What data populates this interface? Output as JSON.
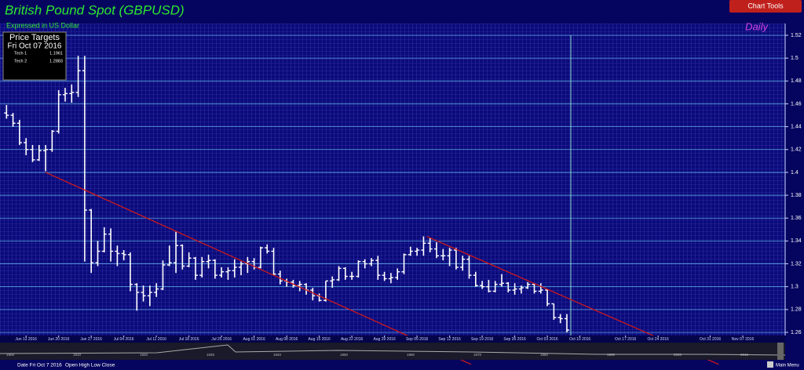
{
  "chart_data": {
    "type": "ohlc",
    "title": "British Pound Spot (GBPUSD)",
    "subtitle": "Expressed in US Dollar",
    "period": "Daily",
    "color": "#ffffff",
    "grid": true,
    "x": [
      0,
      1,
      2,
      3,
      4,
      5,
      6,
      7,
      8,
      9,
      10,
      11,
      12,
      13,
      14,
      15,
      16,
      17,
      18,
      19,
      20,
      21,
      22,
      23,
      24,
      25,
      26,
      27,
      28,
      29,
      30,
      31,
      32,
      33,
      34,
      35,
      36,
      37,
      38,
      39,
      40,
      41,
      42,
      43,
      44,
      45,
      46,
      47,
      48,
      49,
      50,
      51,
      52,
      53,
      54,
      55,
      56,
      57,
      58,
      59,
      60,
      61,
      62,
      63,
      64,
      65,
      66,
      67,
      68,
      69,
      70,
      71,
      72,
      73,
      74,
      75,
      76,
      77,
      78,
      79,
      80,
      81,
      82,
      83,
      84,
      85,
      86
    ],
    "open": [
      1.452,
      1.45,
      1.443,
      1.426,
      1.42,
      1.411,
      1.419,
      1.42,
      1.436,
      1.468,
      1.469,
      1.47,
      1.489,
      1.367,
      1.321,
      1.331,
      1.346,
      1.331,
      1.329,
      1.328,
      1.302,
      1.295,
      1.292,
      1.295,
      1.298,
      1.319,
      1.321,
      1.336,
      1.318,
      1.325,
      1.31,
      1.322,
      1.323,
      1.31,
      1.313,
      1.314,
      1.317,
      1.32,
      1.322,
      1.317,
      1.334,
      1.331,
      1.311,
      1.305,
      1.304,
      1.301,
      1.302,
      1.297,
      1.292,
      1.288,
      1.305,
      1.306,
      1.316,
      1.309,
      1.309,
      1.322,
      1.32,
      1.323,
      1.31,
      1.307,
      1.308,
      1.313,
      1.328,
      1.331,
      1.332,
      1.338,
      1.333,
      1.327,
      1.327,
      1.332,
      1.317,
      1.324,
      1.31,
      1.301,
      1.3,
      1.296,
      1.302,
      1.303,
      1.297,
      1.298,
      1.299,
      1.302,
      1.296,
      1.297,
      1.285,
      1.273,
      1.272
    ],
    "high": [
      1.459,
      1.452,
      1.446,
      1.43,
      1.424,
      1.424,
      1.424,
      1.437,
      1.472,
      1.474,
      1.477,
      1.502,
      1.502,
      1.368,
      1.34,
      1.352,
      1.351,
      1.336,
      1.332,
      1.33,
      1.303,
      1.301,
      1.301,
      1.303,
      1.323,
      1.336,
      1.348,
      1.337,
      1.33,
      1.326,
      1.326,
      1.328,
      1.324,
      1.317,
      1.317,
      1.324,
      1.322,
      1.326,
      1.325,
      1.335,
      1.337,
      1.334,
      1.314,
      1.307,
      1.306,
      1.305,
      1.303,
      1.299,
      1.294,
      1.305,
      1.309,
      1.318,
      1.317,
      1.313,
      1.323,
      1.324,
      1.325,
      1.327,
      1.313,
      1.312,
      1.316,
      1.329,
      1.335,
      1.334,
      1.344,
      1.343,
      1.339,
      1.333,
      1.334,
      1.334,
      1.327,
      1.327,
      1.313,
      1.305,
      1.306,
      1.305,
      1.311,
      1.304,
      1.303,
      1.301,
      1.304,
      1.303,
      1.303,
      1.298,
      1.285,
      1.276,
      1.276
    ],
    "low": [
      1.447,
      1.44,
      1.424,
      1.415,
      1.409,
      1.41,
      1.401,
      1.418,
      1.434,
      1.462,
      1.461,
      1.466,
      1.322,
      1.312,
      1.318,
      1.33,
      1.322,
      1.318,
      1.323,
      1.296,
      1.279,
      1.287,
      1.283,
      1.291,
      1.297,
      1.318,
      1.312,
      1.315,
      1.317,
      1.306,
      1.308,
      1.316,
      1.307,
      1.308,
      1.306,
      1.308,
      1.31,
      1.312,
      1.315,
      1.316,
      1.329,
      1.31,
      1.302,
      1.3,
      1.299,
      1.296,
      1.293,
      1.288,
      1.287,
      1.287,
      1.299,
      1.305,
      1.306,
      1.306,
      1.308,
      1.316,
      1.318,
      1.306,
      1.305,
      1.303,
      1.306,
      1.311,
      1.327,
      1.327,
      1.327,
      1.33,
      1.325,
      1.323,
      1.318,
      1.315,
      1.314,
      1.307,
      1.3,
      1.298,
      1.295,
      1.295,
      1.3,
      1.295,
      1.293,
      1.294,
      1.298,
      1.294,
      1.294,
      1.283,
      1.271,
      1.268,
      1.26
    ],
    "close": [
      1.45,
      1.443,
      1.426,
      1.42,
      1.411,
      1.419,
      1.42,
      1.436,
      1.468,
      1.469,
      1.47,
      1.489,
      1.367,
      1.321,
      1.331,
      1.346,
      1.331,
      1.329,
      1.328,
      1.302,
      1.295,
      1.292,
      1.295,
      1.298,
      1.319,
      1.321,
      1.336,
      1.318,
      1.325,
      1.31,
      1.322,
      1.323,
      1.31,
      1.313,
      1.314,
      1.317,
      1.32,
      1.322,
      1.317,
      1.334,
      1.331,
      1.311,
      1.305,
      1.304,
      1.301,
      1.302,
      1.297,
      1.292,
      1.288,
      1.305,
      1.306,
      1.316,
      1.309,
      1.309,
      1.322,
      1.32,
      1.323,
      1.31,
      1.307,
      1.308,
      1.313,
      1.328,
      1.331,
      1.332,
      1.338,
      1.333,
      1.327,
      1.327,
      1.332,
      1.317,
      1.324,
      1.31,
      1.301,
      1.3,
      1.296,
      1.302,
      1.303,
      1.297,
      1.298,
      1.299,
      1.302,
      1.296,
      1.297,
      1.285,
      1.273,
      1.272,
      1.262
    ],
    "xlim": [
      -1,
      119.5
    ],
    "xticks": [
      {
        "value": 3,
        "label": "Jun 13 2016"
      },
      {
        "value": 8,
        "label": "Jun 20 2016"
      },
      {
        "value": 13,
        "label": "Jun 27 2016"
      },
      {
        "value": 18,
        "label": "Jul 04 2016"
      },
      {
        "value": 23,
        "label": "Jul 11 2016"
      },
      {
        "value": 28,
        "label": "Jul 18 2016"
      },
      {
        "value": 33,
        "label": "Jul 25 2016"
      },
      {
        "value": 38,
        "label": "Aug 01 2016"
      },
      {
        "value": 43,
        "label": "Aug 08 2016"
      },
      {
        "value": 48,
        "label": "Aug 15 2016"
      },
      {
        "value": 53,
        "label": "Aug 22 2016"
      },
      {
        "value": 58,
        "label": "Aug 29 2016"
      },
      {
        "value": 63,
        "label": "Sep 05 2016"
      },
      {
        "value": 68,
        "label": "Sep 12 2016"
      },
      {
        "value": 73,
        "label": "Sep 19 2016"
      },
      {
        "value": 78,
        "label": "Sep 26 2016"
      },
      {
        "value": 83,
        "label": "Oct 03 2016"
      },
      {
        "value": 88,
        "label": "Oct 10 2016"
      },
      {
        "value": 95,
        "label": "Oct 17 2016"
      },
      {
        "value": 100,
        "label": "Oct 24 2016"
      },
      {
        "value": 108,
        "label": "Oct 31 2016"
      },
      {
        "value": 113,
        "label": "Nov 07 2016"
      }
    ],
    "ylim": [
      1.26,
      1.52
    ],
    "yticks": [
      1.26,
      1.28,
      1.3,
      1.32,
      1.34,
      1.36,
      1.38,
      1.4,
      1.42,
      1.44,
      1.46,
      1.48,
      1.5,
      1.52
    ],
    "trendlines": [
      {
        "x": [
          6,
          71.3
        ],
        "y": [
          1.4,
          1.232
        ],
        "color": "#d01818"
      },
      {
        "x": [
          64.5,
          109.3
        ],
        "y": [
          1.344,
          1.232
        ],
        "color": "#d01818"
      }
    ],
    "price_targets": {
      "title": "Price Targets",
      "date": "Fri Oct 07 2016",
      "rows": [
        [
          "Tech 1",
          "1.1961"
        ],
        [
          "Tech 2",
          "1.2883"
        ]
      ]
    },
    "navigator_labels": [
      "1900",
      "1910",
      "1920",
      "1930",
      "1940",
      "1950",
      "1960",
      "1970",
      "1980",
      "1990",
      "2000",
      "2010"
    ],
    "footer": {
      "date": "Date Fri Oct 7 2016",
      "legend": "Open High Low Close",
      "menu": "Main Menu"
    },
    "button": "Chart Tools"
  }
}
